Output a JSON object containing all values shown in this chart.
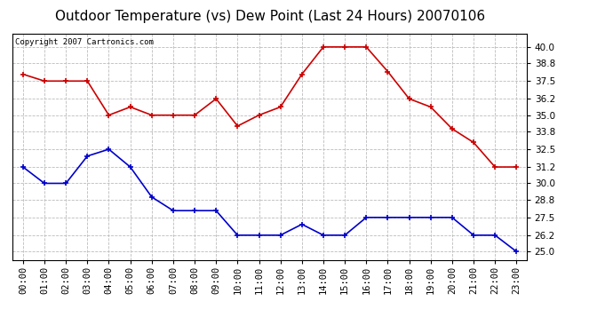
{
  "title": "Outdoor Temperature (vs) Dew Point (Last 24 Hours) 20070106",
  "copyright": "Copyright 2007 Cartronics.com",
  "hours": [
    "00:00",
    "01:00",
    "02:00",
    "03:00",
    "04:00",
    "05:00",
    "06:00",
    "07:00",
    "08:00",
    "09:00",
    "10:00",
    "11:00",
    "12:00",
    "13:00",
    "14:00",
    "15:00",
    "16:00",
    "17:00",
    "18:00",
    "19:00",
    "20:00",
    "21:00",
    "22:00",
    "23:00"
  ],
  "temp": [
    38.0,
    37.5,
    37.5,
    37.5,
    35.0,
    35.6,
    35.0,
    35.0,
    35.0,
    36.2,
    34.2,
    35.0,
    35.6,
    38.0,
    40.0,
    40.0,
    40.0,
    38.2,
    36.2,
    35.6,
    34.0,
    33.0,
    31.2,
    31.2
  ],
  "dew": [
    31.2,
    30.0,
    30.0,
    32.0,
    32.5,
    31.2,
    29.0,
    28.0,
    28.0,
    28.0,
    26.2,
    26.2,
    26.2,
    27.0,
    26.2,
    26.2,
    27.5,
    27.5,
    27.5,
    27.5,
    27.5,
    26.2,
    26.2,
    25.0
  ],
  "temp_color": "#cc0000",
  "dew_color": "#0000cc",
  "bg_color": "#ffffff",
  "plot_bg": "#ffffff",
  "grid_color": "#bbbbbb",
  "ylim_min": 24.4,
  "ylim_max": 41.0,
  "yticks": [
    25.0,
    26.2,
    27.5,
    28.8,
    30.0,
    31.2,
    32.5,
    33.8,
    35.0,
    36.2,
    37.5,
    38.8,
    40.0
  ],
  "title_fontsize": 11,
  "copyright_fontsize": 6.5,
  "tick_fontsize": 7.5,
  "marker_size": 4,
  "line_width": 1.2
}
